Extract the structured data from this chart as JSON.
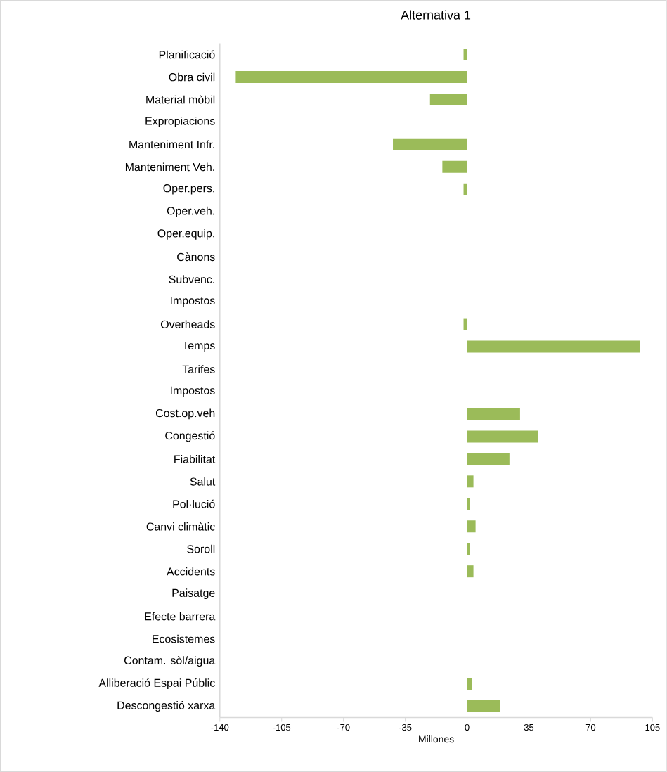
{
  "chart_data": {
    "type": "bar",
    "orientation": "horizontal",
    "title": "Alternativa 1",
    "xlabel": "Millones",
    "categories": [
      "Planificació",
      "Obra civil",
      "Material mòbil",
      "Expropiacions",
      "Manteniment Infr.",
      "Manteniment Veh.",
      "Oper.pers.",
      "Oper.veh.",
      "Oper.equip.",
      "Cànons",
      "Subvenc.",
      "Impostos",
      "Overheads",
      "Temps",
      "Tarifes",
      "Impostos",
      "Cost.op.veh",
      "Congestió",
      "Fiabilitat",
      "Salut",
      "Pol·lució",
      "Canvi climàtic",
      "Soroll",
      "Accidents",
      "Paisatge",
      "Efecte barrera",
      "Ecosistemes",
      "Contam. sòl/aigua",
      "Alliberació Espai Públic",
      "Descongestió xarxa"
    ],
    "values": [
      -2,
      -131,
      -21,
      null,
      -42,
      -14,
      -2,
      null,
      null,
      null,
      null,
      null,
      -2,
      98,
      null,
      null,
      30,
      40,
      24,
      3.6,
      1.6,
      4.8,
      1.6,
      3.6,
      null,
      null,
      null,
      null,
      2.8,
      18.7
    ],
    "color": "#9bbb59",
    "xlim": [
      -140,
      105
    ],
    "xticks": [
      -140,
      -105,
      -70,
      -35,
      0,
      35,
      70,
      105
    ],
    "grid": false
  }
}
